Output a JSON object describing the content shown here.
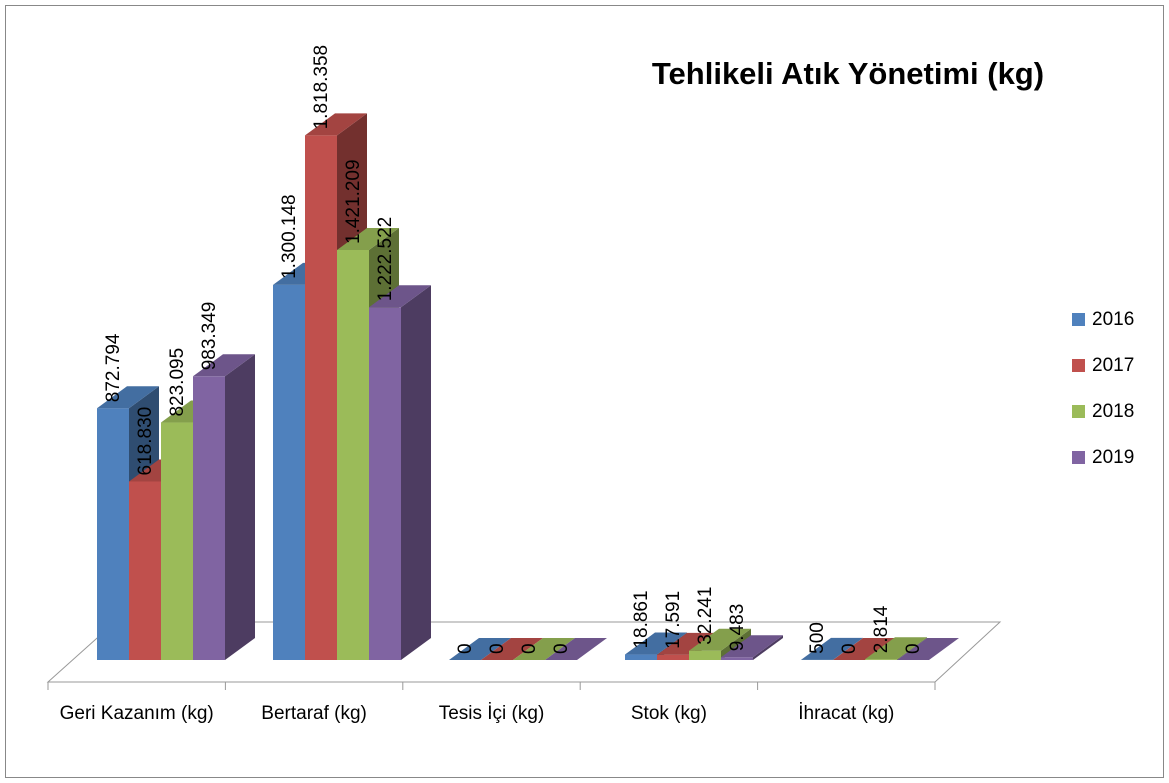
{
  "chart_data": {
    "type": "bar3d",
    "title": "Tehlikeli Atık Yönetimi (kg)",
    "categories": [
      "Geri Kazanım (kg)",
      "Bertaraf (kg)",
      "Tesis İçi (kg)",
      "Stok (kg)",
      "İhracat (kg)"
    ],
    "series": [
      {
        "name": "2016",
        "color": "#4f81bd",
        "values": [
          872794,
          1300148,
          0,
          18861,
          500
        ],
        "value_labels": [
          "872.794",
          "1.300.148",
          "0",
          "18.861",
          "500"
        ]
      },
      {
        "name": "2017",
        "color": "#c0504d",
        "values": [
          618830,
          1818358,
          0,
          17591,
          0
        ],
        "value_labels": [
          "618.830",
          "1.818.358",
          "0",
          "17.591",
          "0"
        ]
      },
      {
        "name": "2018",
        "color": "#9bbb59",
        "values": [
          823095,
          1421209,
          0,
          32241,
          2814
        ],
        "value_labels": [
          "823.095",
          "1.421.209",
          "0",
          "32.241",
          "2.814"
        ]
      },
      {
        "name": "2019",
        "color": "#8064a2",
        "values": [
          983349,
          1222522,
          0,
          9483,
          0
        ],
        "value_labels": [
          "983.349",
          "1.222.522",
          "0",
          "9.483",
          "0"
        ]
      }
    ],
    "ylim": [
      0,
      2000000
    ],
    "legend": "right"
  }
}
